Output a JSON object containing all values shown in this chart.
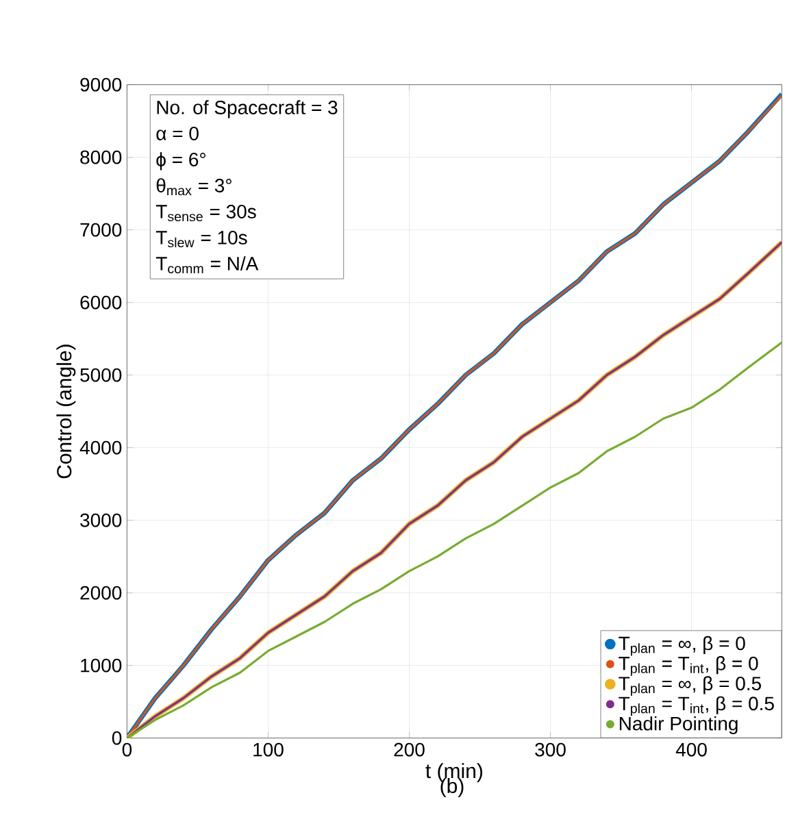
{
  "chart_data": {
    "type": "line",
    "xlabel": "t (min)",
    "ylabel": "Control (angle)",
    "xlim": [
      0,
      464
    ],
    "ylim": [
      0,
      9000
    ],
    "xticks": [
      0,
      100,
      200,
      300,
      400
    ],
    "yticks": [
      0,
      1000,
      2000,
      3000,
      4000,
      5000,
      6000,
      7000,
      8000,
      9000
    ],
    "grid": true,
    "legend": "bottom right",
    "line_style": "solid",
    "x": [
      0,
      20,
      40,
      60,
      80,
      100,
      120,
      140,
      160,
      180,
      200,
      220,
      240,
      260,
      280,
      300,
      320,
      340,
      360,
      380,
      400,
      420,
      440,
      464
    ],
    "series": [
      {
        "name": "T$_{plan}$ = ∞, β = 0",
        "color": "#0072bd",
        "values": [
          0,
          550,
          1000,
          1500,
          1950,
          2450,
          2800,
          3100,
          3550,
          3850,
          4250,
          4600,
          5000,
          5300,
          5700,
          6000,
          6300,
          6700,
          6950,
          7350,
          7650,
          7950,
          8350,
          8870
        ]
      },
      {
        "name": "T$_{plan}$ = T$_{int}$, β = 0",
        "color": "#d95319",
        "values": [
          0,
          550,
          1000,
          1500,
          1950,
          2450,
          2800,
          3100,
          3550,
          3850,
          4250,
          4600,
          5000,
          5300,
          5700,
          6000,
          6300,
          6700,
          6950,
          7350,
          7650,
          7950,
          8350,
          8850
        ]
      },
      {
        "name": "T$_{plan}$ = ∞, β = 0.5",
        "color": "#edb120",
        "values": [
          0,
          300,
          550,
          850,
          1100,
          1450,
          1700,
          1950,
          2300,
          2550,
          2950,
          3200,
          3550,
          3800,
          4150,
          4400,
          4650,
          5000,
          5250,
          5550,
          5800,
          6050,
          6400,
          6830
        ]
      },
      {
        "name": "T$_{plan}$ = T$_{int}$, β = 0.5",
        "color": "#7e2f8e",
        "values": [
          0,
          300,
          550,
          850,
          1100,
          1450,
          1700,
          1950,
          2300,
          2550,
          2950,
          3200,
          3550,
          3800,
          4150,
          4400,
          4650,
          5000,
          5250,
          5550,
          5800,
          6050,
          6400,
          6830
        ]
      },
      {
        "name": "Nadir Pointing",
        "color": "#77ac30",
        "values": [
          0,
          250,
          450,
          700,
          900,
          1200,
          1400,
          1600,
          1850,
          2050,
          2300,
          2500,
          2750,
          2950,
          3200,
          3450,
          3650,
          3950,
          4150,
          4400,
          4550,
          4800,
          5100,
          5450
        ]
      }
    ],
    "annotations": [
      "No. of Spacecraft = 3",
      "α = 0",
      "ϕ = 6°",
      "θ$_{max}$ = 3°",
      "T$_{sense}$ = 30s",
      "T$_{slew}$ = 10s",
      "T$_{comm}$ = N/A",
      "(b)"
    ]
  }
}
